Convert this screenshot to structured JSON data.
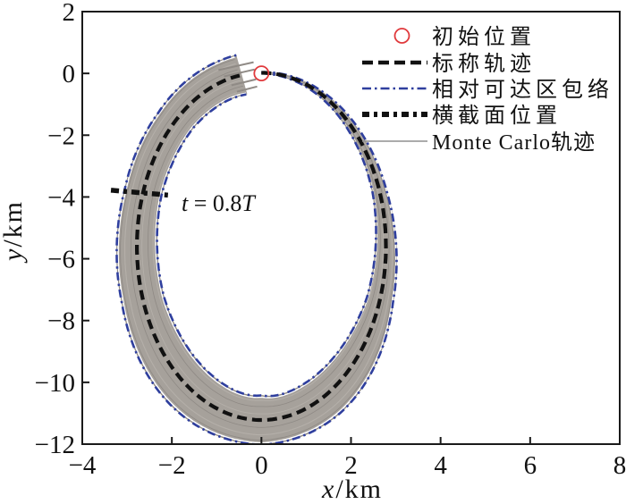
{
  "axes": {
    "x_label": "x/km",
    "x_label_var": "x",
    "x_label_rest": "/km",
    "y_label": "y/km",
    "y_label_var": "y",
    "y_label_rest": "/km",
    "x_range": [
      -4,
      8
    ],
    "y_range": [
      -12,
      2
    ],
    "x_ticks": [
      -4,
      -2,
      0,
      2,
      4,
      6,
      8
    ],
    "y_ticks": [
      2,
      0,
      -2,
      -4,
      -6,
      -8,
      -10,
      -12
    ],
    "x_tick_labels": [
      "−4",
      "−2",
      "0",
      "2",
      "4",
      "6",
      "8"
    ],
    "y_tick_labels": [
      "2",
      "0",
      "−2",
      "−4",
      "−6",
      "−8",
      "−10",
      "−12"
    ]
  },
  "legend": {
    "items": [
      {
        "label": "初始位置",
        "marker": "open-circle",
        "color": "#e0393c"
      },
      {
        "label": "标称轨迹",
        "marker": "dashed",
        "color": "#111111"
      },
      {
        "label": "相对可达区包络",
        "marker": "dash-dot",
        "color": "#2f3f9e"
      },
      {
        "label": "横截面位置",
        "marker": "bold-dash-dot",
        "color": "#111111"
      },
      {
        "label": "Monte Carlo轨迹",
        "marker": "solid",
        "color": "#8f8f8f"
      }
    ]
  },
  "annotation": {
    "text": "t = 0.8T",
    "var1": "t",
    "mid": " = 0.8",
    "var2": "T"
  },
  "colors": {
    "frame": "#1a1a1a",
    "nominal": "#111111",
    "envelope_blue": "#2f3f9e",
    "band_gray": "#a6a19b",
    "monte_carlo": "#8f8a85",
    "streak_light": "#b4afa9",
    "initial_red": "#e0393c"
  },
  "chart_data": {
    "type": "line",
    "title": "",
    "xlabel": "x/km",
    "ylabel": "y/km",
    "xlim": [
      -4,
      8
    ],
    "ylim": [
      -12,
      2
    ],
    "grid": false,
    "legend_position": "upper right",
    "series": [
      {
        "name": "初始位置",
        "type": "marker",
        "marker": "open-circle",
        "color": "#e0393c",
        "points": [
          [
            0,
            0
          ]
        ]
      },
      {
        "name": "标称轨迹",
        "type": "closed-loop",
        "style": "dashed",
        "color": "#111111",
        "model": {
          "center": [
            0,
            -5.6
          ],
          "semi_axes": [
            2.78,
            5.62
          ],
          "start_point": [
            0,
            0
          ],
          "direction": "clockwise",
          "t_end": 0.975
        },
        "points": [
          [
            0,
            0.02
          ],
          [
            1.39,
            -0.73
          ],
          [
            2.41,
            -2.79
          ],
          [
            2.78,
            -5.6
          ],
          [
            2.41,
            -8.41
          ],
          [
            1.39,
            -10.47
          ],
          [
            0,
            -11.22
          ],
          [
            -1.39,
            -10.47
          ],
          [
            -2.41,
            -8.41
          ],
          [
            -2.78,
            -5.6
          ],
          [
            -2.41,
            -2.79
          ],
          [
            -1.39,
            -0.73
          ],
          [
            -0.43,
            -0.05
          ]
        ]
      },
      {
        "name": "相对可达区包络",
        "type": "envelope",
        "style": "dash-dot",
        "color": "#2f3f9e",
        "half_width_profile": [
          [
            0,
            0.02
          ],
          [
            0.1,
            0.09
          ],
          [
            0.2,
            0.16
          ],
          [
            0.3,
            0.3
          ],
          [
            0.42,
            0.62
          ],
          [
            0.5,
            0.8
          ],
          [
            0.58,
            0.68
          ],
          [
            0.7,
            0.48
          ],
          [
            0.8,
            0.42
          ],
          [
            0.88,
            0.46
          ],
          [
            0.93,
            0.55
          ],
          [
            0.978,
            0.65
          ]
        ]
      },
      {
        "name": "横截面位置",
        "type": "segment",
        "style": "bold-dash-dot",
        "color": "#111111",
        "points": [
          [
            -3.36,
            -3.78
          ],
          [
            -2.0,
            -3.95
          ]
        ],
        "label": "t = 0.8T",
        "time_fraction": 0.8
      },
      {
        "name": "Monte Carlo轨迹",
        "type": "trajectory-bundle",
        "style": "solid",
        "color": "#8f8a85",
        "region": "gray band filling the area between the inner and outer reachable-set envelopes"
      }
    ]
  }
}
